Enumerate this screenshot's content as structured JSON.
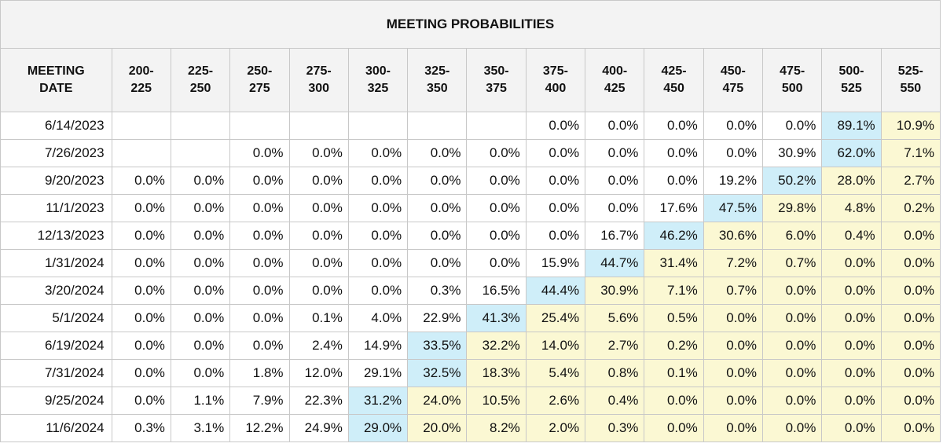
{
  "title": "MEETING PROBABILITIES",
  "header": {
    "meeting_line1": "MEETING",
    "meeting_line2": "DATE",
    "ranges": [
      [
        "200-",
        "225"
      ],
      [
        "225-",
        "250"
      ],
      [
        "250-",
        "275"
      ],
      [
        "275-",
        "300"
      ],
      [
        "300-",
        "325"
      ],
      [
        "325-",
        "350"
      ],
      [
        "350-",
        "375"
      ],
      [
        "375-",
        "400"
      ],
      [
        "400-",
        "425"
      ],
      [
        "425-",
        "450"
      ],
      [
        "450-",
        "475"
      ],
      [
        "475-",
        "500"
      ],
      [
        "500-",
        "525"
      ],
      [
        "525-",
        "550"
      ]
    ]
  },
  "rows": [
    {
      "date": "6/14/2023",
      "values": [
        "",
        "",
        "",
        "",
        "",
        "",
        "",
        "0.0%",
        "0.0%",
        "0.0%",
        "0.0%",
        "0.0%",
        "89.1%",
        "10.9%"
      ],
      "peak": 12
    },
    {
      "date": "7/26/2023",
      "values": [
        "",
        "",
        "0.0%",
        "0.0%",
        "0.0%",
        "0.0%",
        "0.0%",
        "0.0%",
        "0.0%",
        "0.0%",
        "0.0%",
        "30.9%",
        "62.0%",
        "7.1%"
      ],
      "peak": 12
    },
    {
      "date": "9/20/2023",
      "values": [
        "0.0%",
        "0.0%",
        "0.0%",
        "0.0%",
        "0.0%",
        "0.0%",
        "0.0%",
        "0.0%",
        "0.0%",
        "0.0%",
        "19.2%",
        "50.2%",
        "28.0%",
        "2.7%"
      ],
      "peak": 11
    },
    {
      "date": "11/1/2023",
      "values": [
        "0.0%",
        "0.0%",
        "0.0%",
        "0.0%",
        "0.0%",
        "0.0%",
        "0.0%",
        "0.0%",
        "0.0%",
        "17.6%",
        "47.5%",
        "29.8%",
        "4.8%",
        "0.2%"
      ],
      "peak": 10
    },
    {
      "date": "12/13/2023",
      "values": [
        "0.0%",
        "0.0%",
        "0.0%",
        "0.0%",
        "0.0%",
        "0.0%",
        "0.0%",
        "0.0%",
        "16.7%",
        "46.2%",
        "30.6%",
        "6.0%",
        "0.4%",
        "0.0%"
      ],
      "peak": 9
    },
    {
      "date": "1/31/2024",
      "values": [
        "0.0%",
        "0.0%",
        "0.0%",
        "0.0%",
        "0.0%",
        "0.0%",
        "0.0%",
        "15.9%",
        "44.7%",
        "31.4%",
        "7.2%",
        "0.7%",
        "0.0%",
        "0.0%"
      ],
      "peak": 8
    },
    {
      "date": "3/20/2024",
      "values": [
        "0.0%",
        "0.0%",
        "0.0%",
        "0.0%",
        "0.0%",
        "0.3%",
        "16.5%",
        "44.4%",
        "30.9%",
        "7.1%",
        "0.7%",
        "0.0%",
        "0.0%",
        "0.0%"
      ],
      "peak": 7
    },
    {
      "date": "5/1/2024",
      "values": [
        "0.0%",
        "0.0%",
        "0.0%",
        "0.1%",
        "4.0%",
        "22.9%",
        "41.3%",
        "25.4%",
        "5.6%",
        "0.5%",
        "0.0%",
        "0.0%",
        "0.0%",
        "0.0%"
      ],
      "peak": 6
    },
    {
      "date": "6/19/2024",
      "values": [
        "0.0%",
        "0.0%",
        "0.0%",
        "2.4%",
        "14.9%",
        "33.5%",
        "32.2%",
        "14.0%",
        "2.7%",
        "0.2%",
        "0.0%",
        "0.0%",
        "0.0%",
        "0.0%"
      ],
      "peak": 5
    },
    {
      "date": "7/31/2024",
      "values": [
        "0.0%",
        "0.0%",
        "1.8%",
        "12.0%",
        "29.1%",
        "32.5%",
        "18.3%",
        "5.4%",
        "0.8%",
        "0.1%",
        "0.0%",
        "0.0%",
        "0.0%",
        "0.0%"
      ],
      "peak": 5
    },
    {
      "date": "9/25/2024",
      "values": [
        "0.0%",
        "1.1%",
        "7.9%",
        "22.3%",
        "31.2%",
        "24.0%",
        "10.5%",
        "2.6%",
        "0.4%",
        "0.0%",
        "0.0%",
        "0.0%",
        "0.0%",
        "0.0%"
      ],
      "peak": 4
    },
    {
      "date": "11/6/2024",
      "values": [
        "0.3%",
        "3.1%",
        "12.2%",
        "24.9%",
        "29.0%",
        "20.0%",
        "8.2%",
        "2.0%",
        "0.3%",
        "0.0%",
        "0.0%",
        "0.0%",
        "0.0%",
        "0.0%"
      ],
      "peak": 4
    }
  ],
  "colors": {
    "peak": "#cfeef9",
    "tail": "#fbf8d3",
    "header_bg": "#f3f3f3",
    "border": "#c8c8c8"
  }
}
